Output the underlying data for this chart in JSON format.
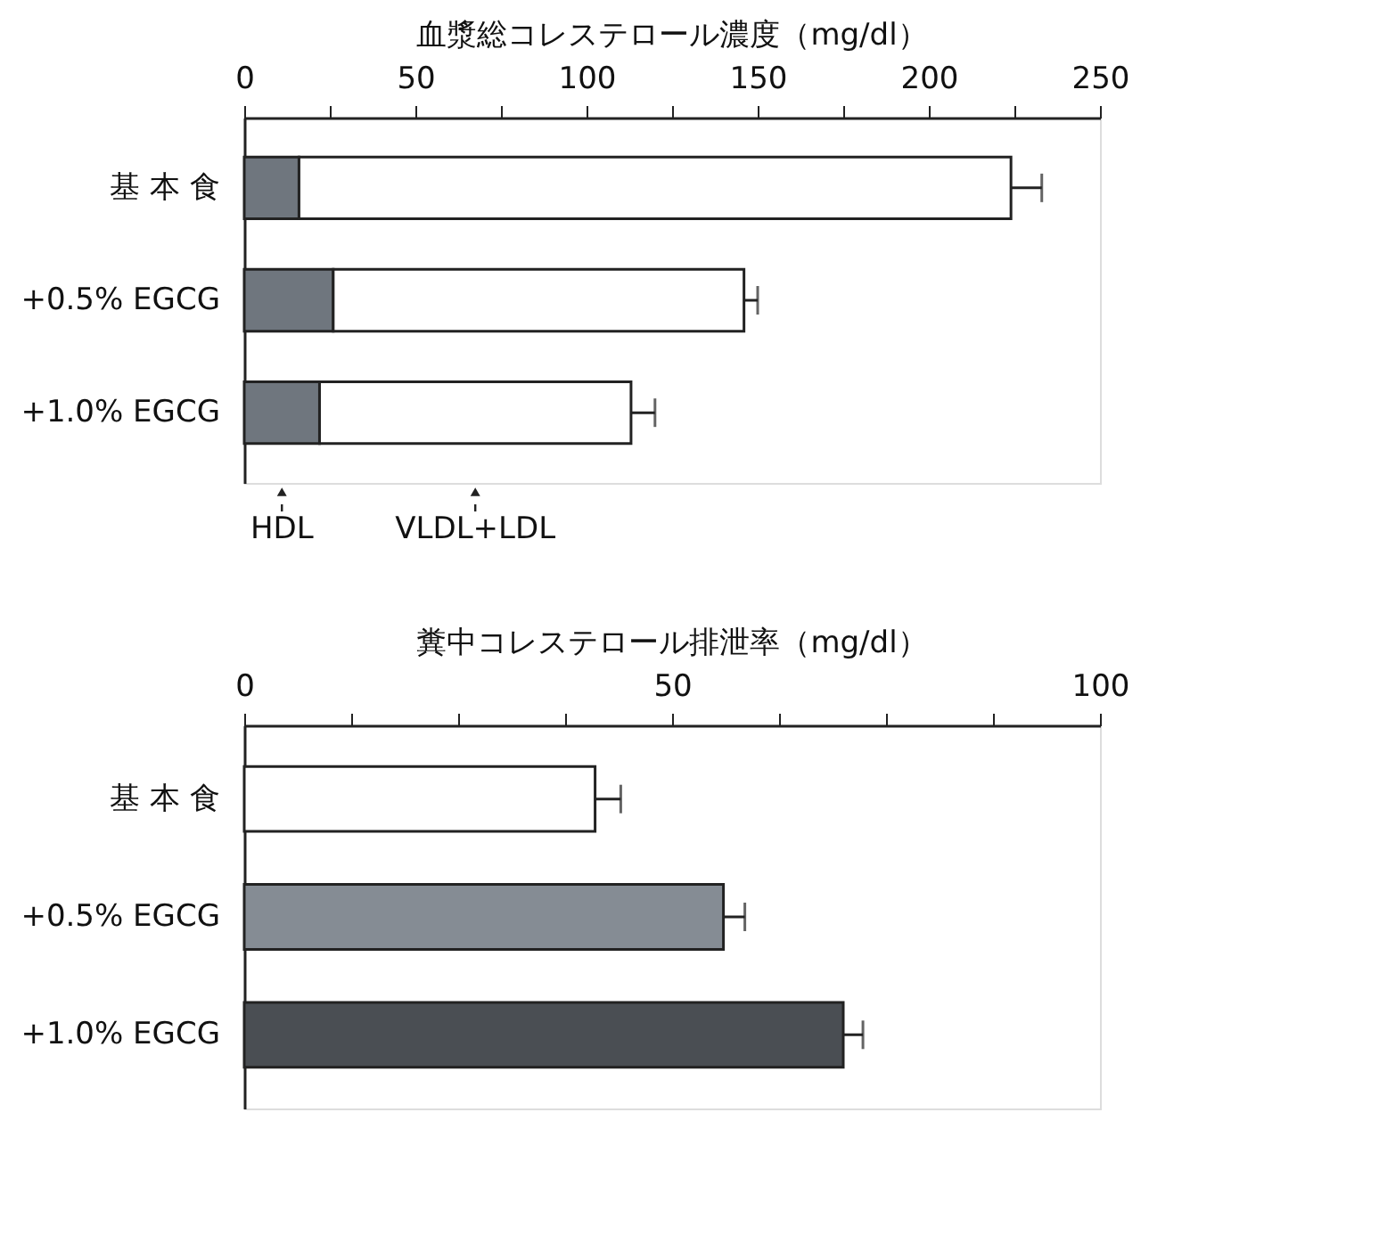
{
  "chart_data": [
    {
      "type": "bar",
      "orientation": "horizontal",
      "stacked": true,
      "title": "血漿総コレステロール濃度（mg/dl）",
      "categories": [
        "基 本 食",
        "+0.5% EGCG",
        "+1.0% EGCG"
      ],
      "series": [
        {
          "name": "HDL",
          "color": "#6f767e",
          "values": [
            16,
            26,
            22
          ]
        },
        {
          "name": "VLDL+LDL",
          "color": "#ffffff",
          "values": [
            208,
            120,
            91
          ],
          "errors": [
            9,
            4,
            7
          ]
        }
      ],
      "xlim": [
        0,
        250
      ],
      "xticks": [
        0,
        {
          "value": 25,
          "label": null
        },
        50,
        {
          "value": 75,
          "label": null
        },
        100,
        {
          "value": 125,
          "label": null
        },
        150,
        {
          "value": 175,
          "label": null
        },
        200,
        {
          "value": 225,
          "label": null
        },
        250
      ],
      "grid": false,
      "legend": "bottom"
    },
    {
      "type": "bar",
      "orientation": "horizontal",
      "title": "糞中コレステロール排泄率（mg/dl）",
      "categories": [
        "基 本 食",
        "+0.5% EGCG",
        "+1.0% EGCG"
      ],
      "values": [
        41,
        56,
        70
      ],
      "errors": [
        3,
        2.5,
        2.3
      ],
      "colors": [
        "#ffffff",
        "#858c94",
        "#4a4e53"
      ],
      "xlim": [
        0,
        100
      ],
      "xticks": [
        0,
        {
          "value": 12.5,
          "label": null
        },
        {
          "value": 25,
          "label": null
        },
        {
          "value": 37.5,
          "label": null
        },
        50,
        {
          "value": 62.5,
          "label": null
        },
        {
          "value": 75,
          "label": null
        },
        {
          "value": 87.5,
          "label": null
        },
        100
      ],
      "grid": false
    }
  ]
}
